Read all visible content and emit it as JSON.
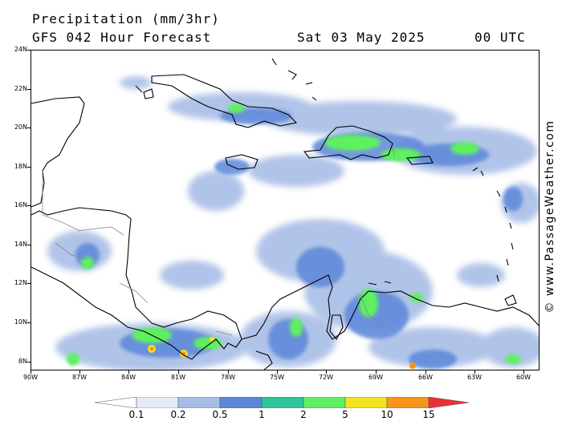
{
  "header": {
    "title": "Precipitation (mm/3hr)",
    "subtitle": "GFS 042 Hour Forecast",
    "date": "Sat 03 May 2025",
    "time": "00 UTC"
  },
  "map": {
    "lat_labels": [
      "24N",
      "22N",
      "20N",
      "18N",
      "16N",
      "14N",
      "12N",
      "10N",
      "8N"
    ],
    "lon_labels": [
      "90W",
      "87W",
      "84W",
      "81W",
      "78W",
      "75W",
      "72W",
      "69W",
      "66W",
      "63W",
      "60W"
    ],
    "colors": {
      "land_line": "#000000",
      "border_line": "#888888"
    }
  },
  "credit": "© www.PassageWeather.com",
  "legend": {
    "labels": [
      "0.1",
      "0.2",
      "0.5",
      "1",
      "2",
      "5",
      "10",
      "15"
    ],
    "colors": [
      "#ffffff",
      "#e4ecf8",
      "#a8bde6",
      "#5b87d9",
      "#2fc49a",
      "#5ef060",
      "#f4e21c",
      "#f8941c",
      "#e8303a"
    ]
  }
}
